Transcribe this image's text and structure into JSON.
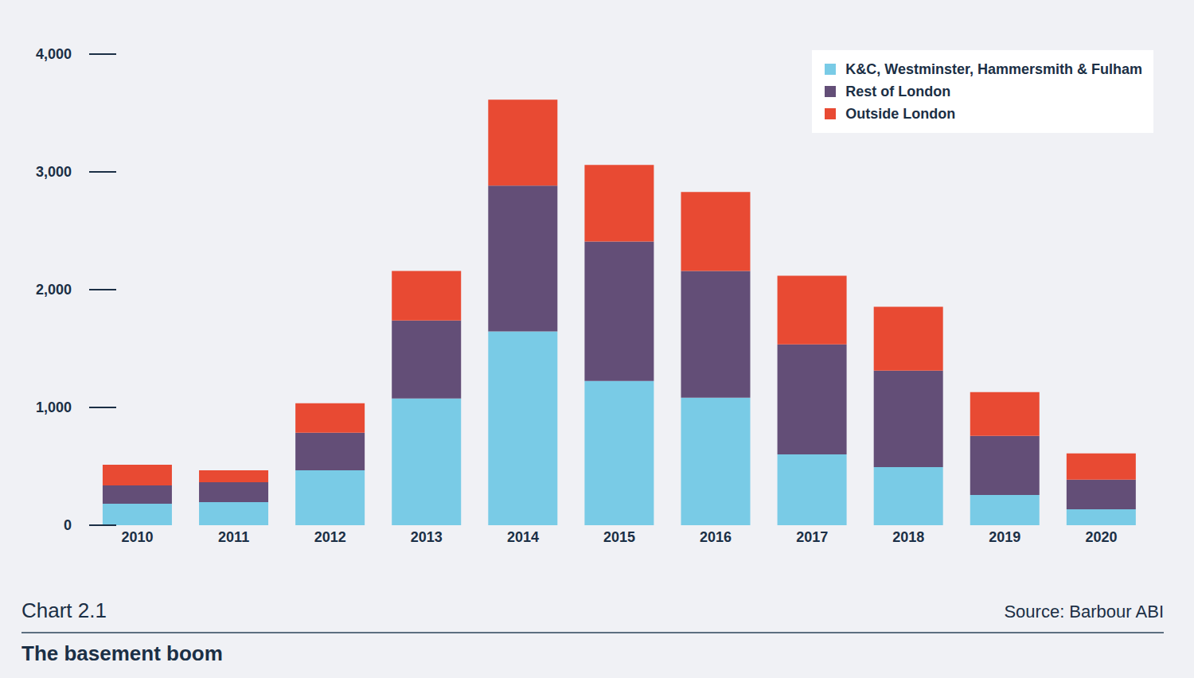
{
  "chart_data": {
    "type": "bar",
    "title": "The basement boom",
    "subtitle": "Chart 2.1",
    "source": "Source: Barbour ABI",
    "categories": [
      "2010",
      "2011",
      "2012",
      "2013",
      "2014",
      "2015",
      "2016",
      "2017",
      "2018",
      "2019",
      "2020"
    ],
    "series": [
      {
        "name": "K&C, Westminster, Hammersmith & Fulham",
        "color": "#79cbe6",
        "values": [
          183,
          196,
          467,
          1076,
          1645,
          1225,
          1083,
          602,
          494,
          257,
          135
        ]
      },
      {
        "name": "Rest of London",
        "color": "#634e77",
        "values": [
          155,
          169,
          318,
          663,
          1238,
          1184,
          1076,
          934,
          819,
          501,
          251
        ]
      },
      {
        "name": "Outside London",
        "color": "#e84a33",
        "values": [
          176,
          102,
          251,
          420,
          731,
          650,
          670,
          582,
          541,
          372,
          223
        ]
      }
    ],
    "ylim": [
      0,
      4000
    ],
    "yticks": [
      0,
      {
        "value": 1000,
        "label": "1,000"
      },
      {
        "value": 2000,
        "label": "2,000"
      },
      {
        "value": 3000,
        "label": "3,000"
      },
      {
        "value": 4000,
        "label": "4,000"
      }
    ],
    "stacked": true,
    "grid": false,
    "legend": "top-right"
  }
}
